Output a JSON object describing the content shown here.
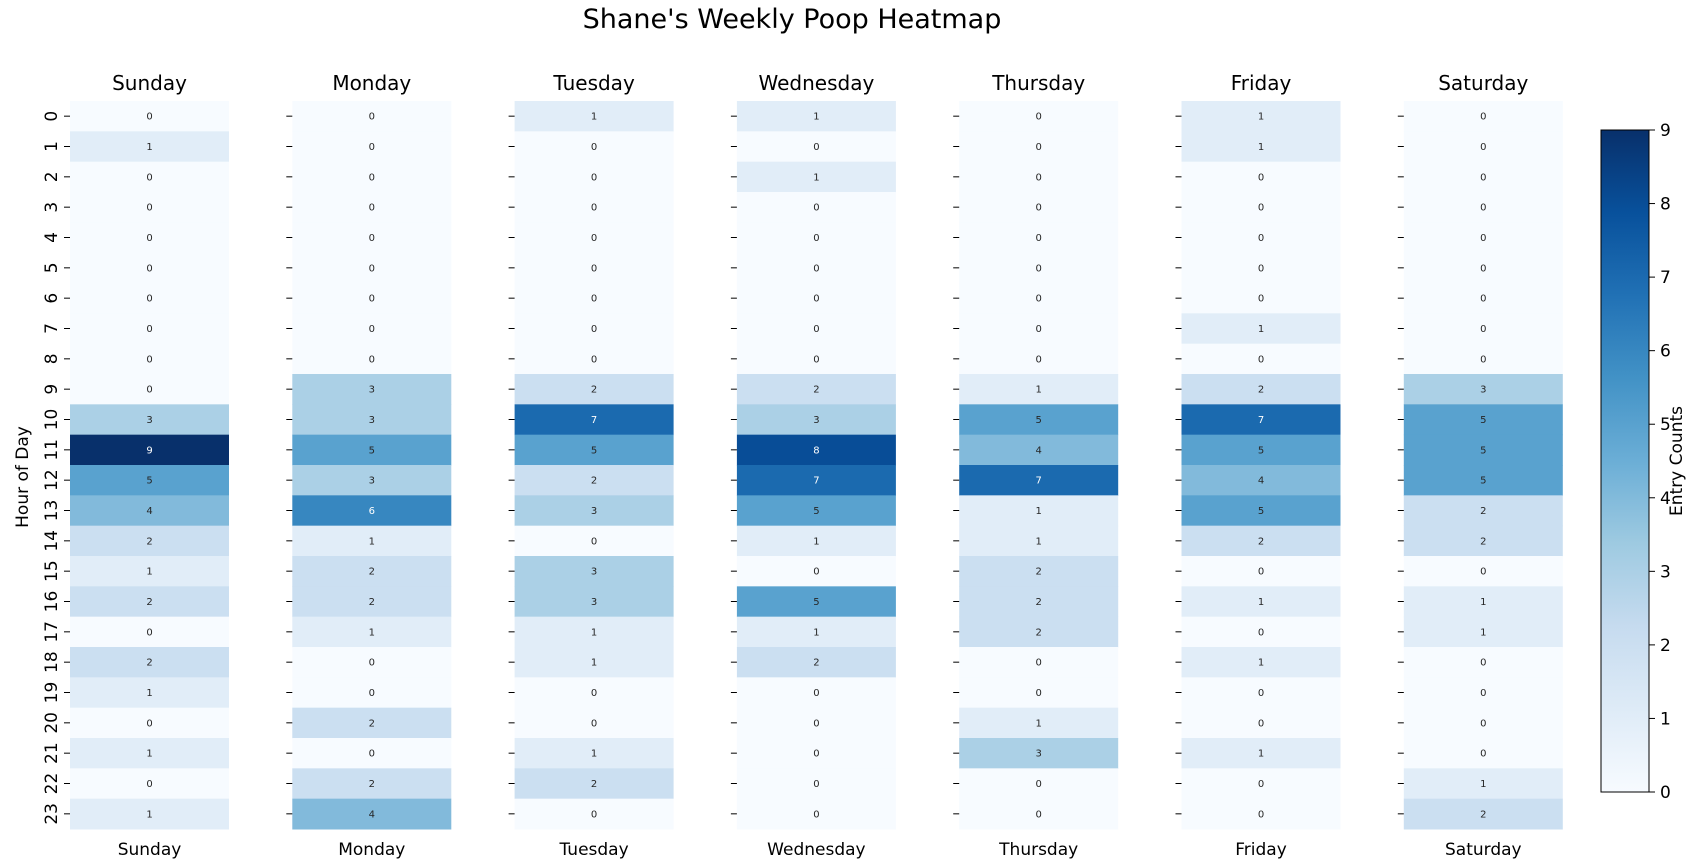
{
  "chart_data": {
    "type": "heatmap",
    "title": "Shane's Weekly Poop Heatmap",
    "ylabel": "Hour of Day",
    "colorbar_label": "Entry Counts",
    "colormap": "Blues",
    "vmin": 0,
    "vmax": 9,
    "colorbar_ticks": [
      "0",
      "1",
      "2",
      "3",
      "4",
      "5",
      "6",
      "7",
      "8",
      "9"
    ],
    "hours": [
      "0",
      "1",
      "2",
      "3",
      "4",
      "5",
      "6",
      "7",
      "8",
      "9",
      "10",
      "11",
      "12",
      "13",
      "14",
      "15",
      "16",
      "17",
      "18",
      "19",
      "20",
      "21",
      "22",
      "23"
    ],
    "days": [
      {
        "name": "Sunday",
        "values": [
          0,
          1,
          0,
          0,
          0,
          0,
          0,
          0,
          0,
          0,
          3,
          9,
          5,
          4,
          2,
          1,
          2,
          0,
          2,
          1,
          0,
          1,
          0,
          1
        ]
      },
      {
        "name": "Monday",
        "values": [
          0,
          0,
          0,
          0,
          0,
          0,
          0,
          0,
          0,
          3,
          3,
          5,
          3,
          6,
          1,
          2,
          2,
          1,
          0,
          0,
          2,
          0,
          2,
          4
        ]
      },
      {
        "name": "Tuesday",
        "values": [
          1,
          0,
          0,
          0,
          0,
          0,
          0,
          0,
          0,
          2,
          7,
          5,
          2,
          3,
          0,
          3,
          3,
          1,
          1,
          0,
          0,
          1,
          2,
          0
        ]
      },
      {
        "name": "Wednesday",
        "values": [
          1,
          0,
          1,
          0,
          0,
          0,
          0,
          0,
          0,
          2,
          3,
          8,
          7,
          5,
          1,
          0,
          5,
          1,
          2,
          0,
          0,
          0,
          0,
          0
        ]
      },
      {
        "name": "Thursday",
        "values": [
          0,
          0,
          0,
          0,
          0,
          0,
          0,
          0,
          0,
          1,
          5,
          4,
          7,
          1,
          1,
          2,
          2,
          2,
          0,
          0,
          1,
          3,
          0,
          0
        ]
      },
      {
        "name": "Friday",
        "values": [
          1,
          1,
          0,
          0,
          0,
          0,
          0,
          1,
          0,
          2,
          7,
          5,
          4,
          5,
          2,
          0,
          1,
          0,
          1,
          0,
          0,
          1,
          0,
          0
        ]
      },
      {
        "name": "Saturday",
        "values": [
          0,
          0,
          0,
          0,
          0,
          0,
          0,
          0,
          0,
          3,
          5,
          5,
          5,
          2,
          2,
          0,
          1,
          1,
          0,
          0,
          0,
          0,
          1,
          2
        ]
      }
    ]
  }
}
